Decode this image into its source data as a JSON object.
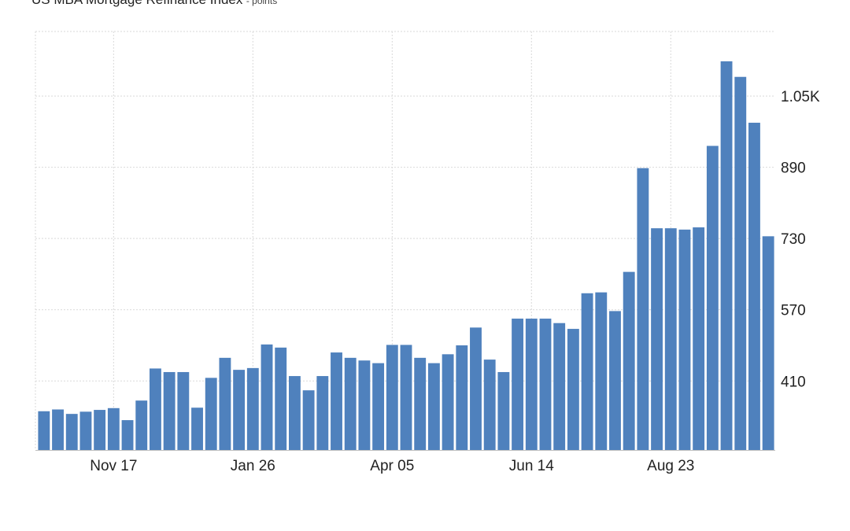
{
  "chart_data": {
    "type": "bar",
    "title": "US MBA Mortgage Refinance Index",
    "unit": "points",
    "x_tick_labels": [
      "Nov 17",
      "Jan 26",
      "Apr 05",
      "Jun 14",
      "Aug 23"
    ],
    "y_ticks": [
      410,
      570,
      730,
      890,
      1050
    ],
    "y_tick_labels": [
      "410",
      "570",
      "730",
      "890",
      "1.05K"
    ],
    "ylim": [
      255,
      1195
    ],
    "grid": true,
    "color": "#4f81bd",
    "values": [
      342,
      346,
      336,
      341,
      345,
      349,
      322,
      366,
      438,
      430,
      430,
      350,
      417,
      462,
      435,
      439,
      492,
      485,
      421,
      389,
      421,
      474,
      462,
      456,
      450,
      491,
      491,
      462,
      450,
      470,
      490,
      530,
      458,
      430,
      550,
      550,
      550,
      540,
      527,
      607,
      609,
      567,
      655,
      888,
      753,
      753,
      750,
      755,
      938,
      1128,
      1093,
      990,
      735
    ]
  }
}
